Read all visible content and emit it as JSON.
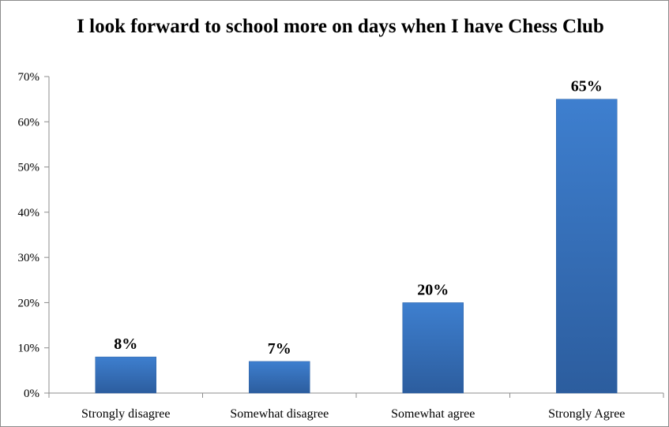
{
  "chart_data": {
    "type": "bar",
    "title": "I look forward to school more on days when I have Chess Club",
    "xlabel": "",
    "ylabel": "",
    "categories": [
      "Strongly disagree",
      "Somewhat disagree",
      "Somewhat agree",
      "Strongly Agree"
    ],
    "values": [
      8,
      7,
      20,
      65
    ],
    "data_labels": [
      "8%",
      "7%",
      "20%",
      "65%"
    ],
    "ylim": [
      0,
      70
    ],
    "yticks": [
      0,
      10,
      20,
      30,
      40,
      50,
      60,
      70
    ],
    "ytick_labels": [
      "0%",
      "10%",
      "20%",
      "30%",
      "40%",
      "50%",
      "60%",
      "70%"
    ],
    "grid": false,
    "legend": "none",
    "bar_color": "#3a78c4"
  }
}
